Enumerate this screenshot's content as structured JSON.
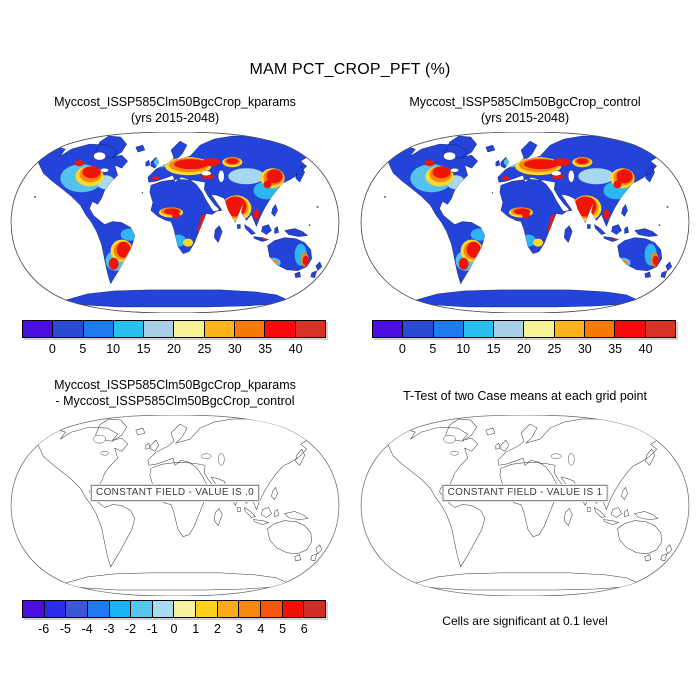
{
  "figure": {
    "title": "MAM PCT_CROP_PFT (%)",
    "footnote": "Cells are significant at 0.1 level"
  },
  "panels": [
    {
      "title_line1": "Myccost_ISSP585Clm50BgcCrop_kparams",
      "title_line2": "(yrs 2015-2048)"
    },
    {
      "title_line1": "Myccost_ISSP585Clm50BgcCrop_control",
      "title_line2": "(yrs 2015-2048)"
    },
    {
      "title_line1": "Myccost_ISSP585Clm50BgcCrop_kparams",
      "title_line2": "- Myccost_ISSP585Clm50BgcCrop_control",
      "overlay_label": "CONSTANT FIELD - VALUE IS .0"
    },
    {
      "title_line1": "T-Test of two Case means at each grid point",
      "overlay_label": "CONSTANT FIELD - VALUE IS 1"
    }
  ],
  "colorbars": {
    "pct": {
      "ticks": [
        "0",
        "5",
        "10",
        "15",
        "20",
        "25",
        "30",
        "35",
        "40"
      ],
      "colors": [
        "#4a0ee0",
        "#2a4ad6",
        "#1f7af0",
        "#29c0f0",
        "#a8cfe8",
        "#f7f397",
        "#fcb31c",
        "#f87a06",
        "#f50b09",
        "#d63226"
      ]
    },
    "diff": {
      "ticks": [
        "-6",
        "-5",
        "-4",
        "-3",
        "-2",
        "-1",
        "0",
        "1",
        "2",
        "3",
        "4",
        "5",
        "6"
      ],
      "colors": [
        "#4a0ee0",
        "#2b2be8",
        "#3a55d6",
        "#2079f0",
        "#18b4f5",
        "#55c4ee",
        "#a8dcf2",
        "#f7f3a0",
        "#fcd11c",
        "#fcab1c",
        "#f8870d",
        "#f8550d",
        "#ee1205",
        "#cc2d26"
      ]
    }
  },
  "chart_data": [
    {
      "type": "heatmap",
      "subtype": "global map (Robinson projection)",
      "title": "Myccost_ISSP585Clm50BgcCrop_kparams (yrs 2015-2048)",
      "variable": "MAM PCT_CROP_PFT",
      "units": "%",
      "colorbar_ticks": [
        0,
        5,
        10,
        15,
        20,
        25,
        30,
        35,
        40
      ],
      "colorbar_colors": [
        "#4a0ee0",
        "#2a4ad6",
        "#1f7af0",
        "#29c0f0",
        "#a8cfe8",
        "#f7f397",
        "#fcb31c",
        "#f87a06",
        "#f50b09",
        "#d63226"
      ],
      "high_value_regions": [
        "central North America",
        "Europe",
        "Ukraine and western Russia",
        "Turkey",
        "India",
        "east and northeast China",
        "West African Sahel",
        "East Africa",
        "southern Brazil",
        "Argentine Pampas",
        "Southeast Asia",
        "southeast and southwest Australia"
      ],
      "low_value_regions": [
        "most remaining land is in the lowest bins (blue)",
        "oceans blank"
      ]
    },
    {
      "type": "heatmap",
      "subtype": "global map (Robinson projection)",
      "title": "Myccost_ISSP585Clm50BgcCrop_control (yrs 2015-2048)",
      "variable": "MAM PCT_CROP_PFT",
      "units": "%",
      "colorbar_ticks": [
        0,
        5,
        10,
        15,
        20,
        25,
        30,
        35,
        40
      ],
      "colorbar_colors": [
        "#4a0ee0",
        "#2a4ad6",
        "#1f7af0",
        "#29c0f0",
        "#a8cfe8",
        "#f7f397",
        "#fcb31c",
        "#f87a06",
        "#f50b09",
        "#d63226"
      ],
      "high_value_regions": [
        "central North America",
        "Europe",
        "Ukraine and western Russia",
        "Turkey",
        "India",
        "east and northeast China",
        "West African Sahel",
        "East Africa",
        "southern Brazil",
        "Argentine Pampas",
        "Southeast Asia",
        "southeast and southwest Australia"
      ]
    },
    {
      "type": "heatmap",
      "subtype": "global map (Robinson projection), outline only",
      "title": "Myccost_ISSP585Clm50BgcCrop_kparams - Myccost_ISSP585Clm50BgcCrop_control",
      "variable": "difference of MAM PCT_CROP_PFT",
      "units": "%",
      "colorbar_ticks": [
        -6,
        -5,
        -4,
        -3,
        -2,
        -1,
        0,
        1,
        2,
        3,
        4,
        5,
        6
      ],
      "colorbar_colors": [
        "#4a0ee0",
        "#2b2be8",
        "#3a55d6",
        "#2079f0",
        "#18b4f5",
        "#55c4ee",
        "#a8dcf2",
        "#f7f3a0",
        "#fcd11c",
        "#fcab1c",
        "#f8870d",
        "#f8550d",
        "#ee1205",
        "#cc2d26"
      ],
      "map_label": "CONSTANT FIELD - VALUE IS .0",
      "field_value": 0
    },
    {
      "type": "heatmap",
      "subtype": "global map (Robinson projection), outline only",
      "title": "T-Test of two Case means at each grid point",
      "map_label": "CONSTANT FIELD - VALUE IS 1",
      "field_value": 1,
      "footnote": "Cells are significant at 0.1 level"
    }
  ]
}
